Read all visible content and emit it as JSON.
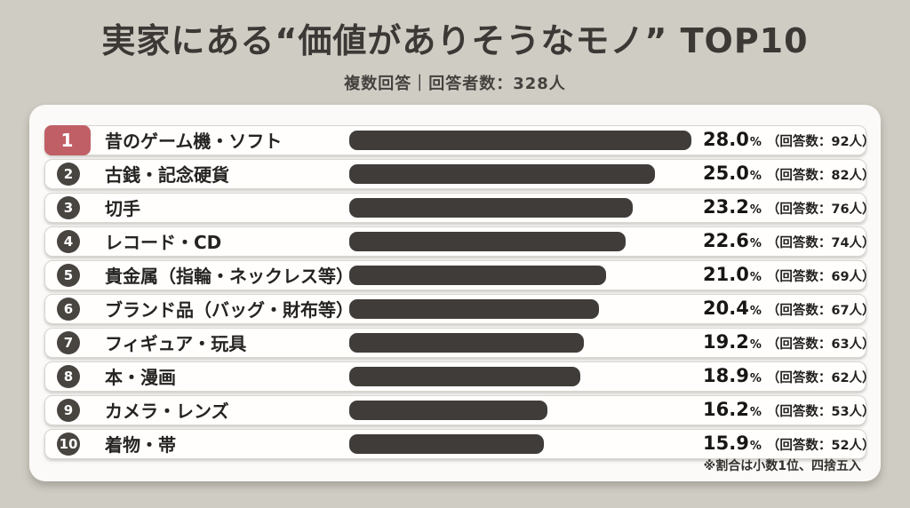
{
  "header": {
    "title": "実家にある“価値がありそうなモノ” TOP10",
    "subtitle": "複数回答｜回答者数：328人"
  },
  "footnote": "※割合は小数1位、四捨五入",
  "colors": {
    "background": "#cfccc4",
    "panel": "#fbfaf8",
    "bar": "#403c39",
    "rank_badge": "#484440",
    "rank1_badge": "#c05f66",
    "title_text": "#3b3835"
  },
  "ranking": {
    "items": [
      {
        "rank": "1",
        "label": "昔のゲーム機・ソフト",
        "percent": 28.0,
        "percent_label": "28.0",
        "unit": "%",
        "count_label": "（回答数：92人）",
        "highlight": true
      },
      {
        "rank": "2",
        "label": "古銭・記念硬貨",
        "percent": 25.0,
        "percent_label": "25.0",
        "unit": "%",
        "count_label": "（回答数：82人）",
        "highlight": false
      },
      {
        "rank": "3",
        "label": "切手",
        "percent": 23.2,
        "percent_label": "23.2",
        "unit": "%",
        "count_label": "（回答数：76人）",
        "highlight": false
      },
      {
        "rank": "4",
        "label": "レコード・CD",
        "percent": 22.6,
        "percent_label": "22.6",
        "unit": "%",
        "count_label": "（回答数：74人）",
        "highlight": false
      },
      {
        "rank": "5",
        "label": "貴金属（指輪・ネックレス等）",
        "percent": 21.0,
        "percent_label": "21.0",
        "unit": "%",
        "count_label": "（回答数：69人）",
        "highlight": false
      },
      {
        "rank": "6",
        "label": "ブランド品（バッグ・財布等）",
        "percent": 20.4,
        "percent_label": "20.4",
        "unit": "%",
        "count_label": "（回答数：67人）",
        "highlight": false
      },
      {
        "rank": "7",
        "label": "フィギュア・玩具",
        "percent": 19.2,
        "percent_label": "19.2",
        "unit": "%",
        "count_label": "（回答数：63人）",
        "highlight": false
      },
      {
        "rank": "8",
        "label": "本・漫画",
        "percent": 18.9,
        "percent_label": "18.9",
        "unit": "%",
        "count_label": "（回答数：62人）",
        "highlight": false
      },
      {
        "rank": "9",
        "label": "カメラ・レンズ",
        "percent": 16.2,
        "percent_label": "16.2",
        "unit": "%",
        "count_label": "（回答数：53人）",
        "highlight": false
      },
      {
        "rank": "10",
        "label": "着物・帯",
        "percent": 15.9,
        "percent_label": "15.9",
        "unit": "%",
        "count_label": "（回答数：52人）",
        "highlight": false
      }
    ]
  },
  "chart_data": {
    "type": "bar",
    "orientation": "horizontal",
    "title": "実家にある“価値がありそうなモノ” TOP10",
    "subtitle": "複数回答｜回答者数：328人",
    "categories": [
      "昔のゲーム機・ソフト",
      "古銭・記念硬貨",
      "切手",
      "レコード・CD",
      "貴金属（指輪・ネックレス等）",
      "ブランド品（バッグ・財布等）",
      "フィギュア・玩具",
      "本・漫画",
      "カメラ・レンズ",
      "着物・帯"
    ],
    "values": [
      28.0,
      25.0,
      23.2,
      22.6,
      21.0,
      20.4,
      19.2,
      18.9,
      16.2,
      15.9
    ],
    "counts": [
      92,
      82,
      76,
      74,
      69,
      67,
      63,
      62,
      53,
      52
    ],
    "total_respondents": 328,
    "xlabel": "",
    "ylabel": "",
    "xlim": [
      0,
      28
    ],
    "grid": false,
    "legend": false,
    "note": "※割合は小数1位、四捨五入"
  }
}
